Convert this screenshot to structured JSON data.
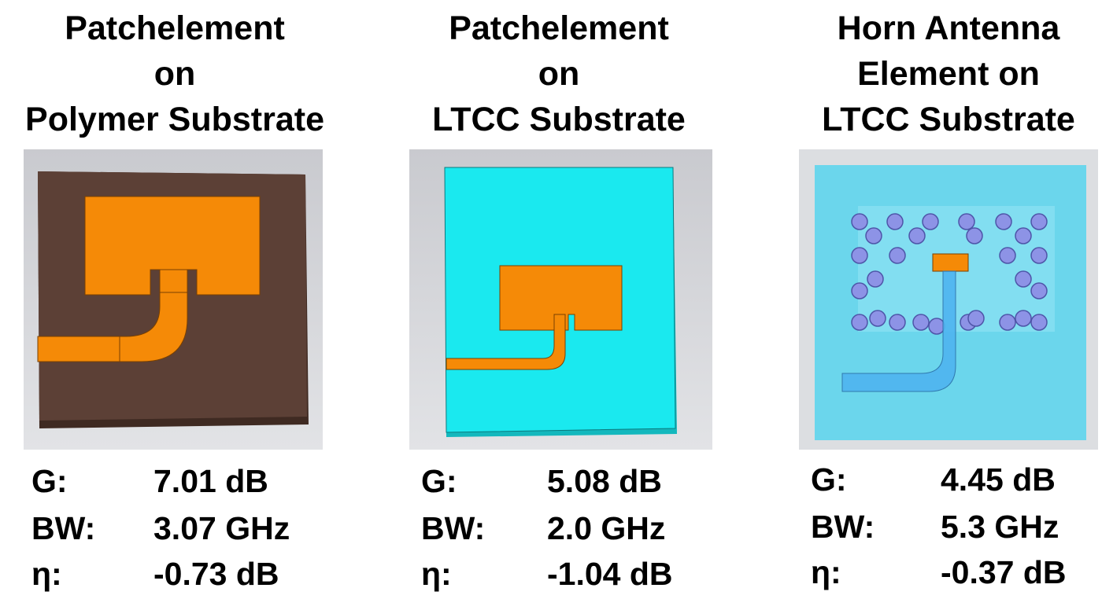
{
  "panels": [
    {
      "title": [
        "Patchelement",
        "on",
        "Polymer Substrate"
      ],
      "specs": [
        {
          "label": "G:",
          "value": "7.01 dB"
        },
        {
          "label": "BW:",
          "value": "3.07 GHz"
        },
        {
          "label": "η:",
          "value": "-0.73 dB"
        }
      ]
    },
    {
      "title": [
        "Patchelement",
        "on",
        "LTCC Substrate"
      ],
      "specs": [
        {
          "label": "G:",
          "value": "5.08 dB"
        },
        {
          "label": "BW:",
          "value": "2.0 GHz"
        },
        {
          "label": "η:",
          "value": "-1.04 dB"
        }
      ]
    },
    {
      "title": [
        "Horn Antenna",
        "Element on",
        "LTCC Substrate"
      ],
      "specs": [
        {
          "label": "G:",
          "value": "4.45 dB"
        },
        {
          "label": "BW:",
          "value": "5.3 GHz"
        },
        {
          "label": "η:",
          "value": "-0.37 dB"
        }
      ]
    }
  ]
}
